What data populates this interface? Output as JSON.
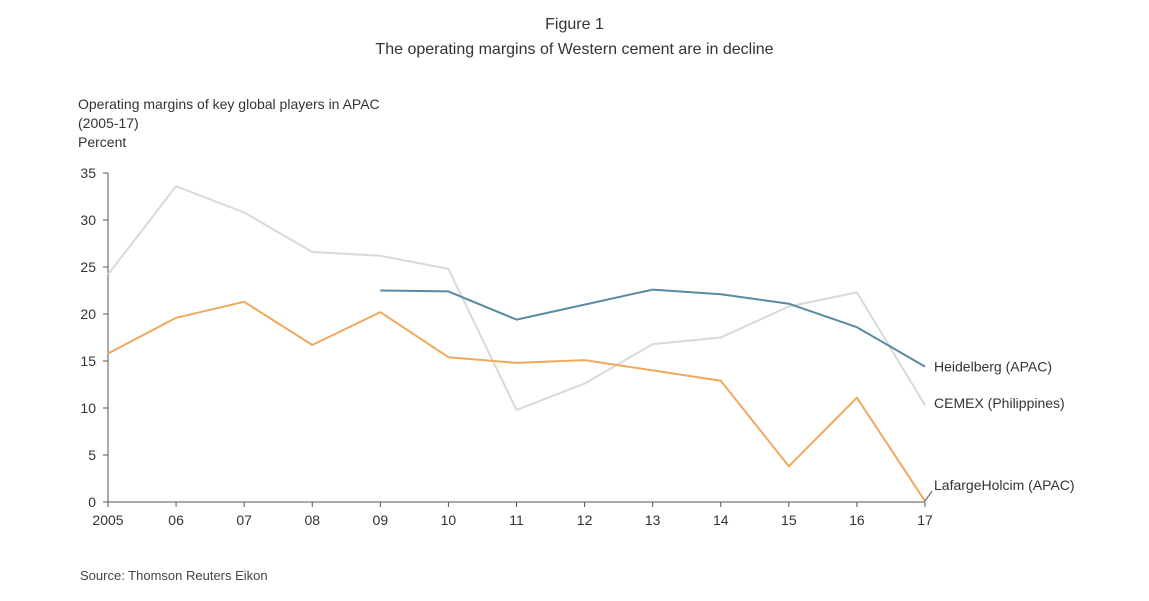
{
  "figure_label": "Figure 1",
  "figure_title": "The operating margins of Western cement are in decline",
  "subtitle_line1": "Operating margins of key global players in APAC",
  "subtitle_line2": "(2005-17)",
  "source": "Source: Thomson Reuters Eikon",
  "chart_data": {
    "type": "line",
    "ylabel": "Percent",
    "ylim": [
      0,
      35
    ],
    "y_ticks": [
      0,
      5,
      10,
      15,
      20,
      25,
      30,
      35
    ],
    "x_tick_labels": [
      "2005",
      "06",
      "07",
      "08",
      "09",
      "10",
      "11",
      "12",
      "13",
      "14",
      "15",
      "16",
      "17"
    ],
    "grid": false,
    "legend": "inline-right",
    "series": [
      {
        "name": "CEMEX (Philippines)",
        "color": "#d9d9d9",
        "values": [
          24.2,
          33.6,
          30.8,
          26.6,
          26.2,
          24.8,
          9.8,
          12.6,
          16.8,
          17.5,
          20.8,
          22.3,
          10.3
        ]
      },
      {
        "name": "LafargeHolcim (APAC)",
        "color": "#f0a95a",
        "values": [
          15.8,
          19.6,
          21.3,
          16.7,
          20.2,
          15.4,
          14.8,
          15.1,
          14.0,
          12.9,
          3.8,
          11.1,
          0.1
        ]
      },
      {
        "name": "Heidelberg (APAC)",
        "color": "#5a8aa0",
        "values": [
          null,
          null,
          null,
          null,
          22.5,
          22.4,
          19.4,
          21.0,
          22.6,
          22.1,
          21.1,
          18.6,
          14.4
        ]
      }
    ]
  }
}
